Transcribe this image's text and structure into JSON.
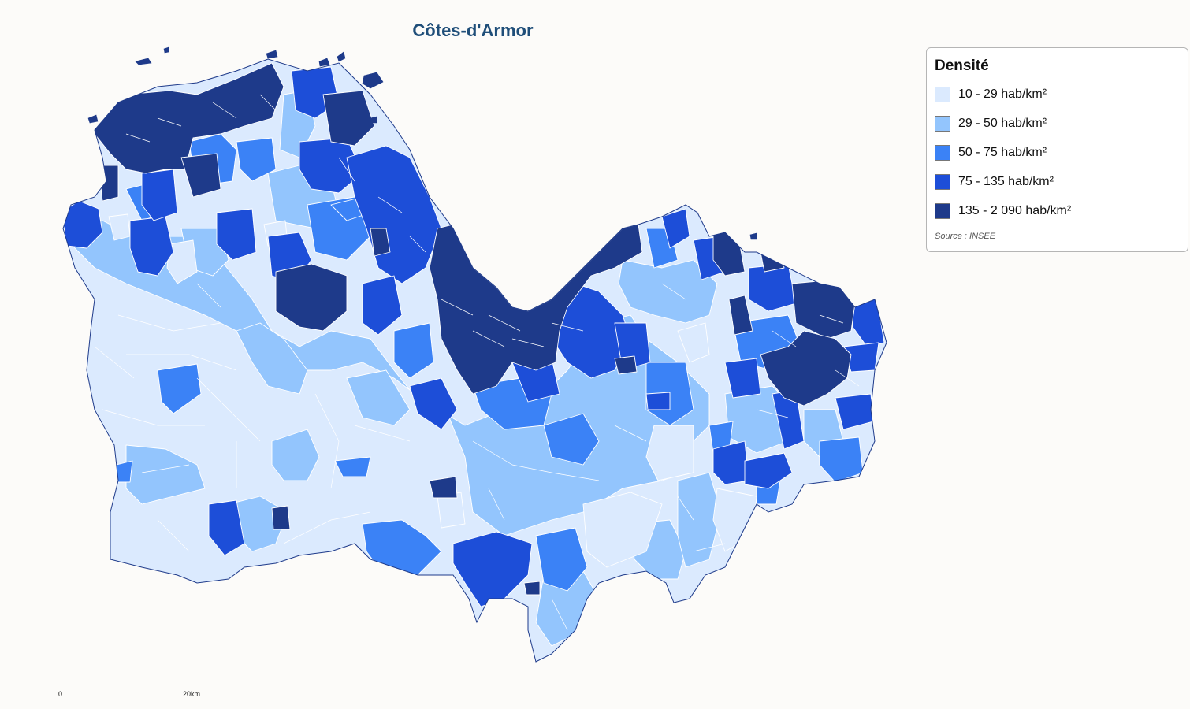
{
  "map": {
    "title": "Côtes-d'Armor",
    "colors": {
      "c1": "#dbeafe",
      "c2": "#93c5fd",
      "c3": "#3b82f6",
      "c4": "#1d4ed8",
      "c5": "#1e3a8a",
      "border": "#ffffff",
      "outline": "#1e3a8a"
    }
  },
  "legend": {
    "title": "Densité",
    "classes": [
      {
        "label": "10 - 29 hab/km²",
        "color": "#dbeafe"
      },
      {
        "label": "29 - 50 hab/km²",
        "color": "#93c5fd"
      },
      {
        "label": "50 - 75 hab/km²",
        "color": "#3b82f6"
      },
      {
        "label": "75 - 135 hab/km²",
        "color": "#1d4ed8"
      },
      {
        "label": "135 - 2 090 hab/km²",
        "color": "#1e3a8a"
      }
    ],
    "source": "Source : INSEE"
  },
  "scale_bar": {
    "start_label": "0",
    "end_label": "20km"
  }
}
